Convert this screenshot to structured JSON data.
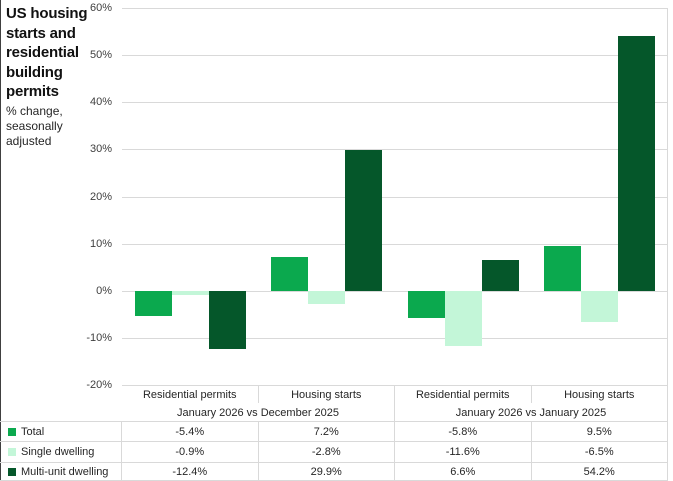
{
  "title": "US housing starts and residential building permits",
  "subtitle": "% change, seasonally adjusted",
  "colors": {
    "total": "#0ba94e",
    "single_dwelling": "#c3f6d8",
    "multi_unit_dwelling": "#05572a",
    "gridline": "#d9d9d9",
    "text": "#262626"
  },
  "chart_data": {
    "type": "bar",
    "title": "US housing starts and residential building permits",
    "subtitle": "% change, seasonally adjusted",
    "categories": [
      "Residential permits",
      "Housing starts",
      "Residential permits",
      "Housing starts"
    ],
    "category_group_headers": [
      "January 2026 vs December 2025",
      "January 2026 vs January 2025"
    ],
    "series": [
      {
        "name": "Total",
        "color": "#0ba94e",
        "values": [
          -5.4,
          7.2,
          -5.8,
          9.5
        ]
      },
      {
        "name": "Single dwelling",
        "color": "#c3f6d8",
        "values": [
          -0.9,
          -2.8,
          -11.6,
          -6.5
        ]
      },
      {
        "name": "Multi-unit dwelling",
        "color": "#05572a",
        "values": [
          -12.4,
          29.9,
          6.6,
          54.2
        ]
      }
    ],
    "ylim": [
      -20,
      60
    ],
    "ytick_step": 10,
    "ytick_labels": [
      "60%",
      "50%",
      "40%",
      "30%",
      "20%",
      "10%",
      "0%",
      "-10%",
      "-20%"
    ],
    "grid": true,
    "legend_position": "table-row-labels"
  },
  "table": {
    "col_headers": [
      "Residential permits",
      "Housing starts",
      "Residential permits",
      "Housing starts"
    ],
    "span_headers": [
      "January 2026 vs December 2025",
      "January 2026 vs January 2025"
    ],
    "row_labels": [
      "Total",
      "Single dwelling",
      "Multi-unit dwelling"
    ],
    "rows": [
      [
        "-5.4%",
        "7.2%",
        "-5.8%",
        "9.5%"
      ],
      [
        "-0.9%",
        "-2.8%",
        "-11.6%",
        "-6.5%"
      ],
      [
        "-12.4%",
        "29.9%",
        "6.6%",
        "54.2%"
      ]
    ]
  }
}
